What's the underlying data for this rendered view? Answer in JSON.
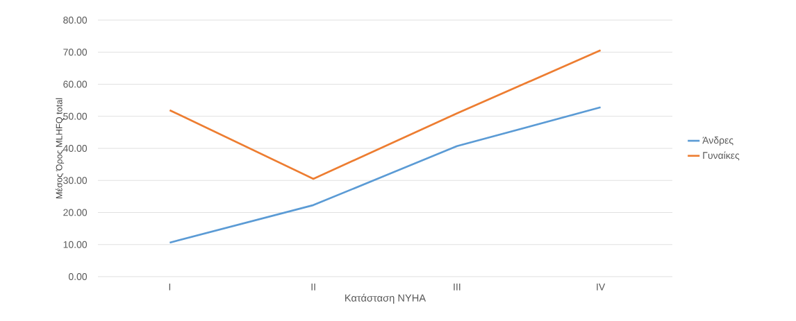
{
  "chart_data": {
    "type": "line",
    "xlabel": "Κατάσταση NYHA",
    "ylabel": "Μέσος Όρος MLHFQ total",
    "categories": [
      "I",
      "II",
      "III",
      "IV"
    ],
    "series": [
      {
        "name": "Άνδρες",
        "color": "#5b9bd5",
        "values": [
          10.6,
          22.3,
          40.7,
          52.8
        ]
      },
      {
        "name": "Γυναίκες",
        "color": "#ed7d31",
        "values": [
          51.9,
          30.5,
          50.9,
          70.6
        ]
      }
    ],
    "ylim": [
      0,
      80
    ],
    "yticks": [
      {
        "value": 0,
        "label": "0.00"
      },
      {
        "value": 10,
        "label": "10.00"
      },
      {
        "value": 20,
        "label": "20.00"
      },
      {
        "value": 30,
        "label": "30.00"
      },
      {
        "value": 40,
        "label": "40.00"
      },
      {
        "value": 50,
        "label": "50.00"
      },
      {
        "value": 60,
        "label": "60.00"
      },
      {
        "value": 70,
        "label": "70.00"
      },
      {
        "value": 80,
        "label": "80.00"
      }
    ],
    "grid": "y",
    "legend": "right",
    "marker": "none",
    "line_style": "solid"
  }
}
